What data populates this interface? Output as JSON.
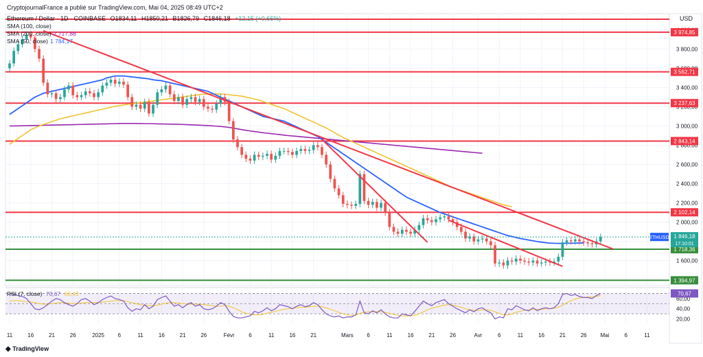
{
  "header": {
    "publisher": "CryptojournalFrance a publié sur TradingView.com, Mai 04, 2025 08:49 UTC+2",
    "symbol": "Ethereum / Dollar · 1D · COINBASE",
    "open": "O1834,11",
    "high": "H1850,21",
    "low": "B1826,79",
    "close": "C1846,18",
    "change": "+12,15 (+0,66%)"
  },
  "indicators": [
    {
      "label": "SMA (100, close)",
      "value": "",
      "color": "#f2c12e"
    },
    {
      "label": "SMA (200, close)",
      "value": "2 717,88",
      "color": "#9c27b0"
    },
    {
      "label": "SMA (50, close)",
      "value": "1 784,17",
      "color": "#2962ff"
    }
  ],
  "rsi_label": "RSI (7, close)",
  "rsi_values": [
    "70,67",
    "66,43"
  ],
  "currency": "USD",
  "footer": "TradingView",
  "colors": {
    "up": "#26a69a",
    "down": "#ef5350",
    "level_red": "#f23645",
    "level_green": "#388e3c",
    "trend": "#f23645"
  },
  "chart_data": {
    "type": "candlestick",
    "symbol": "ETHUSD",
    "last_price": "1 846,18",
    "countdown": "17:10:01",
    "y_ticks": [
      "4 000,00",
      "3 800,00",
      "3 600,00",
      "3 400,00",
      "3 200,00",
      "3 000,00",
      "2 800,00",
      "2 600,00",
      "2 400,00",
      "2 200,00",
      "2 000,00",
      "1 800,00",
      "1 600,00",
      "1 400,00"
    ],
    "y_tick_values": [
      4000,
      3800,
      3600,
      3400,
      3200,
      3000,
      2800,
      2600,
      2400,
      2200,
      2000,
      1800,
      1600,
      1400
    ],
    "ylim": [
      1340,
      4110
    ],
    "x_ticks": [
      {
        "label": "11",
        "i": 0
      },
      {
        "label": "16",
        "i": 5
      },
      {
        "label": "21",
        "i": 10
      },
      {
        "label": "26",
        "i": 15
      },
      {
        "label": "2025",
        "i": 21
      },
      {
        "label": "6",
        "i": 26
      },
      {
        "label": "11",
        "i": 31
      },
      {
        "label": "16",
        "i": 36
      },
      {
        "label": "21",
        "i": 41
      },
      {
        "label": "26",
        "i": 46
      },
      {
        "label": "Févr",
        "i": 52
      },
      {
        "label": "6",
        "i": 57
      },
      {
        "label": "11",
        "i": 62
      },
      {
        "label": "16",
        "i": 67
      },
      {
        "label": "21",
        "i": 72
      },
      {
        "label": "Mars",
        "i": 80
      },
      {
        "label": "6",
        "i": 85
      },
      {
        "label": "11",
        "i": 90
      },
      {
        "label": "16",
        "i": 95
      },
      {
        "label": "21",
        "i": 100
      },
      {
        "label": "26",
        "i": 105
      },
      {
        "label": "Avr",
        "i": 111
      },
      {
        "label": "6",
        "i": 116
      },
      {
        "label": "11",
        "i": 121
      },
      {
        "label": "16",
        "i": 126
      },
      {
        "label": "21",
        "i": 131
      },
      {
        "label": "26",
        "i": 136
      },
      {
        "label": "Mai",
        "i": 141
      },
      {
        "label": "6",
        "i": 146
      },
      {
        "label": "11",
        "i": 151
      }
    ],
    "x_count": 156,
    "horizontal_levels": [
      {
        "value": 4110,
        "label": "",
        "color": "#f23645"
      },
      {
        "value": 3974.85,
        "label": "3 974,85",
        "color": "#f23645"
      },
      {
        "value": 3562.71,
        "label": "3 562,71",
        "color": "#f23645"
      },
      {
        "value": 3237.63,
        "label": "3 237,63",
        "color": "#f23645"
      },
      {
        "value": 2843.14,
        "label": "2 843,14",
        "color": "#f23645"
      },
      {
        "value": 2102.14,
        "label": "2 102,14",
        "color": "#f23645"
      },
      {
        "value": 1718.36,
        "label": "1 718,36",
        "color": "#388e3c"
      },
      {
        "value": 1394.97,
        "label": "1 394,97",
        "color": "#388e3c"
      }
    ],
    "trendlines": [
      {
        "from": [
          8,
          3990
        ],
        "to": [
          143,
          1720
        ]
      },
      {
        "from": [
          74,
          2860
        ],
        "to": [
          99,
          1790
        ]
      },
      {
        "from": [
          104,
          2020
        ],
        "to": [
          131,
          1540
        ]
      }
    ],
    "closes": [
      3650,
      3780,
      3850,
      3900,
      3950,
      3920,
      3800,
      3700,
      3450,
      3330,
      3340,
      3280,
      3300,
      3380,
      3420,
      3320,
      3300,
      3320,
      3360,
      3340,
      3300,
      3350,
      3420,
      3450,
      3480,
      3440,
      3460,
      3430,
      3300,
      3200,
      3220,
      3180,
      3250,
      3130,
      3220,
      3350,
      3380,
      3420,
      3330,
      3260,
      3300,
      3220,
      3280,
      3300,
      3250,
      3280,
      3200,
      3180,
      3170,
      3230,
      3300,
      3250,
      3050,
      2860,
      2780,
      2700,
      2660,
      2640,
      2700,
      2680,
      2690,
      2710,
      2650,
      2690,
      2740,
      2740,
      2730,
      2700,
      2740,
      2760,
      2740,
      2750,
      2800,
      2780,
      2700,
      2600,
      2450,
      2350,
      2280,
      2190,
      2180,
      2170,
      2190,
      2500,
      2220,
      2180,
      2210,
      2150,
      2200,
      2100,
      1950,
      1900,
      1880,
      1920,
      1900,
      1880,
      1920,
      1970,
      2040,
      2020,
      2000,
      2030,
      2050,
      2060,
      2030,
      2000,
      1950,
      1900,
      1830,
      1850,
      1800,
      1820,
      1830,
      1800,
      1760,
      1570,
      1580,
      1550,
      1600,
      1590,
      1620,
      1600,
      1590,
      1580,
      1600,
      1570,
      1580,
      1590,
      1580,
      1590,
      1640,
      1790,
      1810,
      1800,
      1820,
      1800,
      1790,
      1780,
      1770,
      1800,
      1846
    ],
    "sma50": [
      3120,
      3150,
      3180,
      3210,
      3240,
      3270,
      3300,
      3320,
      3340,
      3350,
      3360,
      3370,
      3380,
      3390,
      3400,
      3410,
      3420,
      3430,
      3440,
      3450,
      3460,
      3470,
      3480,
      3500,
      3510,
      3520,
      3520,
      3520,
      3515,
      3510,
      3505,
      3500,
      3495,
      3490,
      3480,
      3475,
      3470,
      3460,
      3450,
      3440,
      3430,
      3420,
      3410,
      3400,
      3390,
      3380,
      3370,
      3360,
      3340,
      3320,
      3300,
      3280,
      3260,
      3240,
      3220,
      3200,
      3180,
      3160,
      3140,
      3120,
      3100,
      3090,
      3080,
      3070,
      3060,
      3050,
      3030,
      3010,
      2990,
      2970,
      2950,
      2930,
      2910,
      2890,
      2860,
      2830,
      2800,
      2770,
      2740,
      2710,
      2680,
      2650,
      2620,
      2590,
      2560,
      2530,
      2500,
      2470,
      2440,
      2410,
      2380,
      2350,
      2320,
      2290,
      2260,
      2240,
      2220,
      2200,
      2180,
      2160,
      2140,
      2120,
      2100,
      2085,
      2070,
      2055,
      2040,
      2025,
      2010,
      1995,
      1980,
      1965,
      1950,
      1935,
      1920,
      1905,
      1890,
      1875,
      1860,
      1850,
      1840,
      1830,
      1822,
      1814,
      1806,
      1798,
      1792,
      1786,
      1782,
      1780,
      1779,
      1779,
      1780,
      1781,
      1782,
      1783,
      1784
    ],
    "sma100": [
      2810,
      2840,
      2870,
      2900,
      2930,
      2960,
      2980,
      3000,
      3015,
      3030,
      3045,
      3060,
      3075,
      3085,
      3095,
      3105,
      3115,
      3125,
      3135,
      3145,
      3155,
      3165,
      3175,
      3185,
      3195,
      3205,
      3212,
      3218,
      3224,
      3230,
      3236,
      3242,
      3248,
      3254,
      3260,
      3266,
      3272,
      3278,
      3284,
      3290,
      3296,
      3302,
      3308,
      3314,
      3320,
      3326,
      3330,
      3332,
      3333,
      3333,
      3332,
      3330,
      3325,
      3320,
      3315,
      3310,
      3300,
      3290,
      3280,
      3270,
      3255,
      3240,
      3225,
      3210,
      3195,
      3180,
      3160,
      3140,
      3120,
      3100,
      3080,
      3060,
      3040,
      3020,
      3000,
      2980,
      2955,
      2930,
      2905,
      2880,
      2860,
      2840,
      2820,
      2800,
      2780,
      2760,
      2740,
      2720,
      2700,
      2680,
      2660,
      2640,
      2620,
      2600,
      2580,
      2560,
      2540,
      2520,
      2500,
      2480,
      2460,
      2440,
      2420,
      2400,
      2380,
      2360,
      2345,
      2330,
      2315,
      2300,
      2285,
      2270,
      2255,
      2240,
      2225,
      2210,
      2195,
      2180,
      2170,
      2160
    ],
    "sma200": [
      3000,
      3000,
      3001,
      3002,
      3003,
      3004,
      3005,
      3006,
      3007,
      3008,
      3009,
      3010,
      3011,
      3012,
      3013,
      3014,
      3015,
      3016,
      3017,
      3018,
      3019,
      3020,
      3021,
      3022,
      3023,
      3024,
      3025,
      3026,
      3026,
      3026,
      3025,
      3025,
      3024,
      3024,
      3023,
      3022,
      3021,
      3020,
      3019,
      3018,
      3017,
      3016,
      3014,
      3012,
      3010,
      3008,
      3006,
      3004,
      3001,
      2998,
      2995,
      2990,
      2985,
      2978,
      2970,
      2962,
      2955,
      2948,
      2942,
      2936,
      2930,
      2925,
      2920,
      2915,
      2910,
      2905,
      2900,
      2896,
      2892,
      2888,
      2884,
      2880,
      2876,
      2872,
      2868,
      2864,
      2860,
      2856,
      2852,
      2848,
      2844,
      2840,
      2836,
      2832,
      2828,
      2824,
      2820,
      2816,
      2812,
      2808,
      2804,
      2800,
      2796,
      2792,
      2788,
      2784,
      2780,
      2776,
      2772,
      2768,
      2764,
      2760,
      2756,
      2752,
      2748,
      2744,
      2740,
      2736,
      2732,
      2728,
      2724,
      2720,
      2717
    ],
    "rsi": [
      70,
      68,
      66,
      64,
      60,
      50,
      40,
      38,
      42,
      48,
      55,
      60,
      58,
      52,
      48,
      45,
      50,
      58,
      60,
      55,
      48,
      52,
      58,
      62,
      65,
      60,
      58,
      55,
      42,
      35,
      40,
      38,
      48,
      40,
      45,
      58,
      62,
      65,
      55,
      45,
      48,
      42,
      48,
      52,
      45,
      48,
      40,
      38,
      40,
      45,
      52,
      48,
      35,
      25,
      22,
      22,
      24,
      26,
      35,
      32,
      36,
      42,
      36,
      40,
      48,
      46,
      44,
      40,
      45,
      48,
      44,
      46,
      52,
      48,
      38,
      30,
      26,
      24,
      26,
      22,
      24,
      24,
      28,
      55,
      32,
      30,
      36,
      32,
      38,
      30,
      24,
      22,
      22,
      30,
      28,
      26,
      35,
      45,
      55,
      50,
      46,
      52,
      55,
      58,
      50,
      45,
      40,
      36,
      32,
      38,
      34,
      40,
      42,
      36,
      32,
      20,
      24,
      22,
      40,
      38,
      46,
      42,
      38,
      36,
      42,
      36,
      40,
      42,
      40,
      42,
      50,
      68,
      70,
      66,
      68,
      64,
      62,
      62,
      60,
      66,
      70
    ],
    "rsi_ma": [
      55,
      56,
      56,
      55,
      54,
      53,
      52,
      50,
      49,
      49,
      50,
      51,
      52,
      52,
      51,
      50,
      50,
      51,
      52,
      52,
      52,
      52,
      53,
      54,
      55,
      56,
      56,
      56,
      54,
      52,
      50,
      48,
      47,
      46,
      46,
      47,
      49,
      51,
      52,
      52,
      51,
      50,
      49,
      49,
      49,
      49,
      48,
      47,
      46,
      45,
      45,
      46,
      45,
      42,
      38,
      34,
      31,
      29,
      28,
      28,
      29,
      31,
      33,
      35,
      37,
      39,
      40,
      41,
      42,
      43,
      43,
      44,
      45,
      45,
      44,
      42,
      39,
      36,
      33,
      30,
      28,
      27,
      27,
      31,
      33,
      34,
      34,
      34,
      34,
      33,
      31,
      29,
      27,
      26,
      26,
      26,
      27,
      30,
      34,
      38,
      41,
      43,
      45,
      47,
      48,
      47,
      45,
      43,
      40,
      38,
      37,
      37,
      38,
      38,
      37,
      34,
      31,
      28,
      28,
      30,
      33,
      35,
      37,
      38,
      39,
      39,
      39,
      40,
      40,
      41,
      43,
      47,
      52,
      56,
      59,
      61,
      62,
      63,
      63,
      64,
      66
    ],
    "rsi_levels": [
      70,
      50,
      30
    ],
    "rsi_ticks": [
      "60,00",
      "40,00",
      "20,00"
    ]
  }
}
